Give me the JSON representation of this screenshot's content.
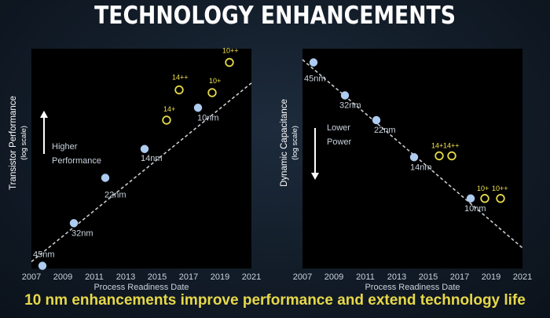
{
  "slide": {
    "title": "TECHNOLOGY ENHANCEMENTS",
    "footer": "10 nm enhancements improve performance and extend technology life"
  },
  "colors": {
    "background": "#121c28",
    "plot_background": "#000000",
    "node_marker": "#aecbf0",
    "enhancement_marker": "#e6d94a",
    "trend_line": "#c8ccd2",
    "footer_text": "#e7d84a"
  },
  "chart_data": [
    {
      "type": "scatter",
      "xlabel": "Process Readiness Date",
      "ylabel": "Transistor Performance",
      "ylabel_sub": "(log scale)",
      "x_ticks": [
        2007,
        2009,
        2011,
        2013,
        2015,
        2017,
        2019,
        2021
      ],
      "xlim": [
        2007,
        2021
      ],
      "y_scale": "log",
      "y_direction": "up",
      "annotation": [
        "Higher",
        "Performance"
      ],
      "arrow": "up",
      "trend_line": {
        "style": "dashed",
        "from": [
          2007,
          0.5
        ],
        "to": [
          2021,
          13.5
        ]
      },
      "series": [
        {
          "marker": "filled",
          "points": [
            {
              "label": "45nm",
              "x": 2007.7,
              "y": 0.2
            },
            {
              "label": "32nm",
              "x": 2009.7,
              "y": 3.3
            },
            {
              "label": "22nm",
              "x": 2011.7,
              "y": 6.6
            },
            {
              "label": "14nm",
              "x": 2014.2,
              "y": 8.7
            },
            {
              "label": "10nm",
              "x": 2017.6,
              "y": 11.7
            }
          ]
        },
        {
          "marker": "hollow",
          "points": [
            {
              "label": "14+",
              "x": 2015.6,
              "y": 10.8
            },
            {
              "label": "14++",
              "x": 2016.4,
              "y": 13.0
            },
            {
              "label": "10+",
              "x": 2018.5,
              "y": 12.8
            },
            {
              "label": "10++",
              "x": 2019.6,
              "y": 15.0
            }
          ]
        }
      ]
    },
    {
      "type": "scatter",
      "xlabel": "Process Readiness Date",
      "ylabel": "Dynamic Capacitance",
      "ylabel_sub": "(log scale)",
      "x_ticks": [
        2007,
        2009,
        2011,
        2013,
        2015,
        2017,
        2019,
        2021
      ],
      "xlim": [
        2007,
        2021
      ],
      "y_scale": "log",
      "y_direction": "down",
      "annotation": [
        "Lower",
        "Power"
      ],
      "arrow": "down",
      "trend_line": {
        "style": "dashed",
        "from": [
          2007,
          15.2
        ],
        "to": [
          2021,
          1.5
        ]
      },
      "series": [
        {
          "marker": "filled",
          "points": [
            {
              "label": "45nm",
              "x": 2007.7,
              "y": 15.0
            },
            {
              "label": "32nm",
              "x": 2009.7,
              "y": 12.6
            },
            {
              "label": "22nm",
              "x": 2011.7,
              "y": 10.8
            },
            {
              "label": "14nm",
              "x": 2014.1,
              "y": 8.1
            },
            {
              "label": "10nm",
              "x": 2017.7,
              "y": 5.1
            }
          ]
        },
        {
          "marker": "hollow",
          "points": [
            {
              "label": "14+",
              "x": 2015.7,
              "y": 8.2
            },
            {
              "label": "14++",
              "x": 2016.5,
              "y": 8.2
            },
            {
              "label": "10+",
              "x": 2018.6,
              "y": 5.1
            },
            {
              "label": "10++",
              "x": 2019.6,
              "y": 5.1
            }
          ]
        }
      ]
    }
  ]
}
